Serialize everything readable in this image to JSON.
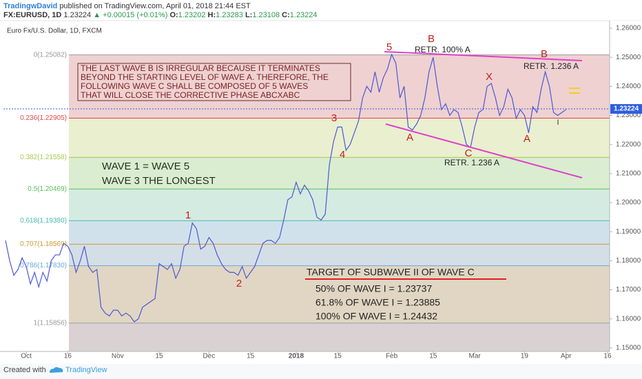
{
  "header": {
    "author": "TradingwDavid",
    "published": "published on TradingView.com, April 01, 2018 21:44 EST",
    "symbol": "FX:EURUSD, 1D",
    "price": "1.23224",
    "change": "▲ +0.00015 (+0.01%)",
    "ohlc": [
      {
        "label": "O:",
        "value": "1.23202"
      },
      {
        "label": "H:",
        "value": "1.23283"
      },
      {
        "label": "L:",
        "value": "1.23108"
      },
      {
        "label": "C:",
        "value": "1.23224"
      }
    ]
  },
  "chart_data": {
    "type": "line",
    "categories": [
      null,
      null,
      null,
      null,
      null,
      "Oct",
      null,
      null,
      null,
      null,
      null,
      null,
      null,
      null,
      null,
      "16",
      null,
      null,
      null,
      null,
      null,
      null,
      null,
      null,
      null,
      null,
      null,
      "Nov",
      null,
      null,
      null,
      null,
      null,
      null,
      null,
      null,
      null,
      "15",
      null,
      null,
      null,
      null,
      null,
      null,
      null,
      null,
      null,
      null,
      null,
      "Dec",
      null,
      null,
      null,
      null,
      null,
      null,
      null,
      null,
      null,
      "15",
      null,
      null,
      null,
      null,
      null,
      null,
      null,
      null,
      null,
      null,
      "2018",
      null,
      null,
      null,
      null,
      null,
      null,
      null,
      null,
      null,
      "15",
      null,
      null,
      null,
      null,
      null,
      null,
      null,
      null,
      null,
      null,
      null,
      null,
      "Feb",
      null,
      null,
      null,
      null,
      null,
      null,
      null,
      null,
      null,
      "15",
      null,
      null,
      null,
      null,
      null,
      null,
      null,
      null,
      null,
      "Mar",
      null,
      null,
      null,
      null,
      null,
      null,
      null,
      null,
      null,
      null,
      null,
      "19",
      null,
      null,
      null,
      null,
      null,
      null,
      null,
      null,
      null,
      "Apr",
      null,
      null,
      null,
      null,
      null,
      null,
      null,
      null,
      null,
      "16"
    ],
    "series": [
      {
        "name": "Euro Fx/U.S. Dollar, 1D, FXCM",
        "color": "#4a58d6",
        "values": [
          1.187,
          1.18,
          1.175,
          1.177,
          1.181,
          1.178,
          1.172,
          1.176,
          1.171,
          1.176,
          1.173,
          1.18,
          1.182,
          1.182,
          1.186,
          1.185,
          1.182,
          1.176,
          1.18,
          1.185,
          1.178,
          1.176,
          1.177,
          1.164,
          1.162,
          1.161,
          1.163,
          1.163,
          1.161,
          1.162,
          1.161,
          1.159,
          1.16,
          1.164,
          1.165,
          1.166,
          1.167,
          1.179,
          1.178,
          1.177,
          1.179,
          1.174,
          1.177,
          1.185,
          1.186,
          1.193,
          1.191,
          1.184,
          1.185,
          1.188,
          1.186,
          1.182,
          1.179,
          1.177,
          1.176,
          1.176,
          1.175,
          1.178,
          1.174,
          1.176,
          1.178,
          1.182,
          1.186,
          1.187,
          1.187,
          1.186,
          1.188,
          1.194,
          1.201,
          1.202,
          1.207,
          1.203,
          1.206,
          1.204,
          1.201,
          1.195,
          1.194,
          1.196,
          1.213,
          1.221,
          1.226,
          1.226,
          1.218,
          1.22,
          1.224,
          1.228,
          1.236,
          1.24,
          1.238,
          1.245,
          1.238,
          1.243,
          1.246,
          1.251,
          1.248,
          1.236,
          1.24,
          1.226,
          1.225,
          1.227,
          1.23,
          1.236,
          1.245,
          1.25,
          1.24,
          1.232,
          1.234,
          1.23,
          1.232,
          1.231,
          1.226,
          1.22,
          1.219,
          1.226,
          1.231,
          1.232,
          1.24,
          1.241,
          1.236,
          1.23,
          1.233,
          1.239,
          1.236,
          1.229,
          1.232,
          1.23,
          1.224,
          1.233,
          1.231,
          1.239,
          1.245,
          1.24,
          1.231,
          1.23,
          1.231,
          1.232,
          null,
          null,
          null,
          null,
          null,
          null,
          null,
          null,
          null,
          null
        ]
      }
    ],
    "ylim": [
      1.1488,
      1.2626
    ],
    "yticks": [
      {
        "value": 1.26,
        "label": "1.26000"
      },
      {
        "value": 1.25,
        "label": "1.25000"
      },
      {
        "value": 1.24,
        "label": "1.24000"
      },
      {
        "value": 1.23,
        "label": "1.23000"
      },
      {
        "value": 1.22,
        "label": "1.22000"
      },
      {
        "value": 1.21,
        "label": "1.21000"
      },
      {
        "value": 1.2,
        "label": "1.20000"
      },
      {
        "value": 1.19,
        "label": "1.19000"
      },
      {
        "value": 1.18,
        "label": "1.18000"
      },
      {
        "value": 1.17,
        "label": "1.17000"
      },
      {
        "value": 1.16,
        "label": "1.16000"
      },
      {
        "value": 1.15,
        "label": "1.15000"
      }
    ],
    "last_price": 1.23224,
    "last_price_color": "#2f5fe0",
    "fib_levels": [
      {
        "value": 1.25082,
        "label": "0(1.25082)",
        "color": "#9a9a9a",
        "fill": "#ecc9c9"
      },
      {
        "value": 1.22905,
        "label": "0.236(1.22905)",
        "color": "#e04848",
        "fill": "#e6ecc8"
      },
      {
        "value": 1.21558,
        "label": "0.382(1.21558)",
        "color": "#a8c850",
        "fill": "#d3eac8"
      },
      {
        "value": 1.20469,
        "label": "0.5(1.20469)",
        "color": "#58c058",
        "fill": "#cce8dc"
      },
      {
        "value": 1.1938,
        "label": "0.618(1.19380)",
        "color": "#48b8b0",
        "fill": "#c9dce8"
      },
      {
        "value": 1.18569,
        "label": "0.707(1.18569)",
        "color": "#d09a30",
        "fill": "#cdd8e2"
      },
      {
        "value": 1.1783,
        "label": "0.786(1.17830)",
        "color": "#68a8d8",
        "fill": "#dccfb8"
      },
      {
        "value": 1.15856,
        "label": "1(1.15856)",
        "color": "#9a9a9a",
        "fill": "#d3caca"
      }
    ]
  },
  "annotations": {
    "box": [
      "THE LAST WAVE B IS IRREGULAR BECAUSE IT TERMINATES",
      "BEYOND THE STARTING LEVEL OF WAVE A. THEREFORE, THE",
      "FOLLOWING WAVE C SHALL BE COMPOSED OF 5 WAVES",
      "THAT WILL CLOSE THE CORRECTIVE PHASE ABCXABC"
    ],
    "waves": [
      "WAVE 1 = WAVE 5",
      "WAVE 3 THE LONGEST"
    ],
    "target_title": "TARGET OF SUBWAVE II OF WAVE C",
    "targets": [
      "50% OF WAVE I = 1.23737",
      "61.8% OF WAVE I = 1.23885",
      "100% OF WAVE I = 1.24432"
    ],
    "labels": [
      "1",
      "2",
      "3",
      "4",
      "5",
      "B",
      "A",
      "C",
      "X",
      "A",
      "B",
      "I"
    ],
    "retr": [
      "RETR. 100% A",
      "RETR. 1.236 A",
      "RETR. 1.236 A"
    ]
  },
  "footer": {
    "created": "Created with",
    "brand": "TradingView"
  }
}
